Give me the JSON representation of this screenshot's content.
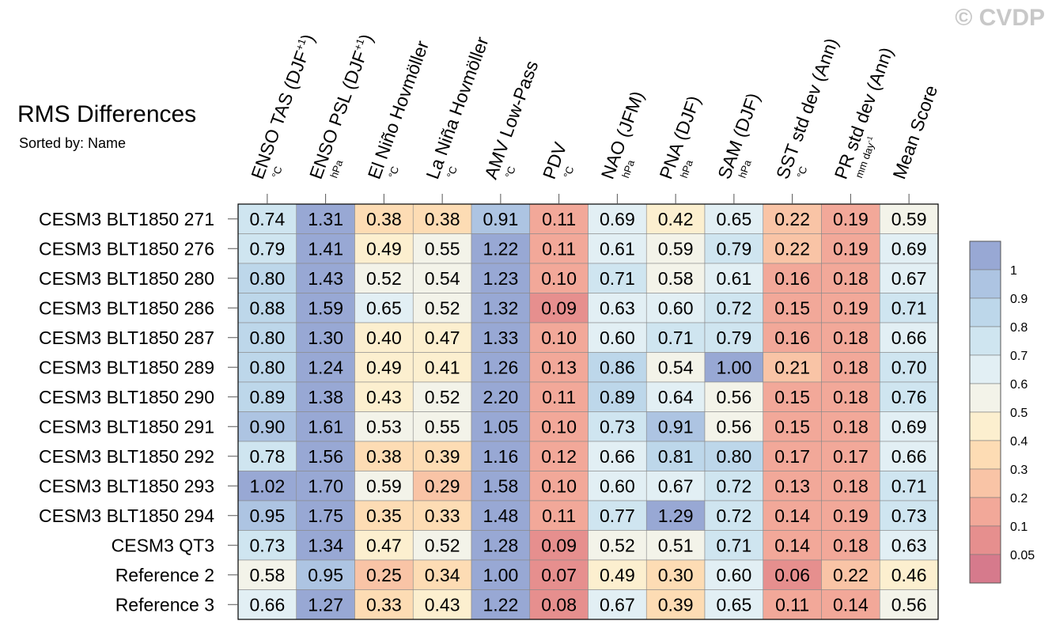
{
  "title": "RMS Differences",
  "subtitle": "Sorted by: Name",
  "watermark": "© CVDP",
  "chart_data": {
    "type": "heatmap",
    "columns": [
      {
        "label": "ENSO TAS (DJF",
        "superscript": "+1",
        "suffix": ")",
        "unit": "°C"
      },
      {
        "label": "ENSO PSL (DJF",
        "superscript": "+1",
        "suffix": ")",
        "unit": "hPa"
      },
      {
        "label": "El Niño Hovmöller",
        "unit": "°C"
      },
      {
        "label": "La Niña Hovmöller",
        "unit": "°C"
      },
      {
        "label": "AMV Low-Pass",
        "unit": "°C"
      },
      {
        "label": "PDV",
        "unit": "°C"
      },
      {
        "label": "NAO (JFM)",
        "unit": "hPa"
      },
      {
        "label": "PNA (DJF)",
        "unit": "hPa"
      },
      {
        "label": "SAM (DJF)",
        "unit": "hPa"
      },
      {
        "label": "SST std dev (Ann)",
        "unit": "°C"
      },
      {
        "label": "PR std dev (Ann)",
        "unit": "mm day",
        "unit_superscript": "-1"
      },
      {
        "label": "Mean Score",
        "unit": ""
      }
    ],
    "rows": [
      "CESM3 BLT1850 271",
      "CESM3 BLT1850 276",
      "CESM3 BLT1850 280",
      "CESM3 BLT1850 286",
      "CESM3 BLT1850 287",
      "CESM3 BLT1850 289",
      "CESM3 BLT1850 290",
      "CESM3 BLT1850 291",
      "CESM3 BLT1850 292",
      "CESM3 BLT1850 293",
      "CESM3 BLT1850 294",
      "CESM3 QT3",
      "Reference 2",
      "Reference 3"
    ],
    "values": [
      [
        0.74,
        1.31,
        0.38,
        0.38,
        0.91,
        0.11,
        0.69,
        0.42,
        0.65,
        0.22,
        0.19,
        0.59
      ],
      [
        0.79,
        1.41,
        0.49,
        0.55,
        1.22,
        0.11,
        0.61,
        0.59,
        0.79,
        0.22,
        0.19,
        0.69
      ],
      [
        0.8,
        1.43,
        0.52,
        0.54,
        1.23,
        0.1,
        0.71,
        0.58,
        0.61,
        0.16,
        0.18,
        0.67
      ],
      [
        0.88,
        1.59,
        0.65,
        0.52,
        1.32,
        0.09,
        0.63,
        0.6,
        0.72,
        0.15,
        0.19,
        0.71
      ],
      [
        0.8,
        1.3,
        0.4,
        0.47,
        1.33,
        0.1,
        0.6,
        0.71,
        0.79,
        0.16,
        0.18,
        0.66
      ],
      [
        0.8,
        1.24,
        0.49,
        0.41,
        1.26,
        0.13,
        0.86,
        0.54,
        1.0,
        0.21,
        0.18,
        0.7
      ],
      [
        0.89,
        1.38,
        0.43,
        0.52,
        2.2,
        0.11,
        0.89,
        0.64,
        0.56,
        0.15,
        0.18,
        0.76
      ],
      [
        0.9,
        1.61,
        0.53,
        0.55,
        1.05,
        0.1,
        0.73,
        0.91,
        0.56,
        0.15,
        0.18,
        0.69
      ],
      [
        0.78,
        1.56,
        0.38,
        0.39,
        1.16,
        0.12,
        0.66,
        0.81,
        0.8,
        0.17,
        0.17,
        0.66
      ],
      [
        1.02,
        1.7,
        0.59,
        0.29,
        1.58,
        0.1,
        0.6,
        0.67,
        0.72,
        0.13,
        0.18,
        0.71
      ],
      [
        0.95,
        1.75,
        0.35,
        0.33,
        1.48,
        0.11,
        0.77,
        1.29,
        0.72,
        0.14,
        0.19,
        0.73
      ],
      [
        0.73,
        1.34,
        0.47,
        0.52,
        1.28,
        0.09,
        0.52,
        0.51,
        0.71,
        0.14,
        0.18,
        0.63
      ],
      [
        0.58,
        0.95,
        0.25,
        0.34,
        1.0,
        0.07,
        0.49,
        0.3,
        0.6,
        0.06,
        0.22,
        0.46
      ],
      [
        0.66,
        1.27,
        0.33,
        0.43,
        1.22,
        0.08,
        0.67,
        0.39,
        0.65,
        0.11,
        0.14,
        0.56
      ]
    ],
    "colorbar": {
      "levels": [
        "1",
        "0.9",
        "0.8",
        "0.7",
        "0.6",
        "0.5",
        "0.4",
        "0.3",
        "0.2",
        "0.1",
        "0.05"
      ],
      "colors": [
        "#98a8d4",
        "#adc4e2",
        "#bdd7ea",
        "#cfe5f0",
        "#e2eff4",
        "#f3f3e9",
        "#fcefcf",
        "#fddcb4",
        "#f9c4a6",
        "#f2a899",
        "#e68f8e",
        "#d67a8c"
      ]
    }
  }
}
